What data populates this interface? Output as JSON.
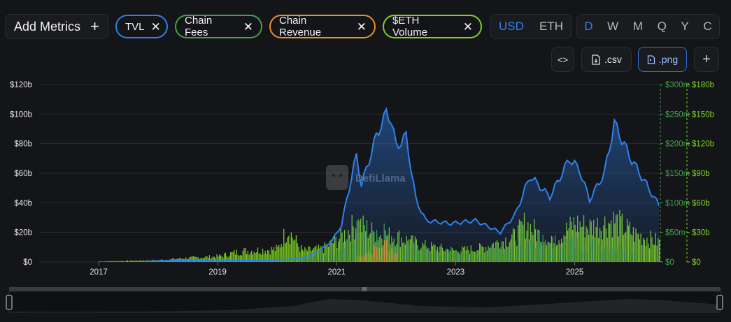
{
  "toolbar": {
    "add_metrics_label": "Add Metrics",
    "add_metrics_icon": "plus-icon",
    "metrics": [
      {
        "label": "TVL",
        "color": "#2f80ed"
      },
      {
        "label": "Chain Fees",
        "color": "#3fa34d"
      },
      {
        "label": "Chain Revenue",
        "color": "#e8912d"
      },
      {
        "label": "$ETH Volume",
        "color": "#7ed321"
      }
    ],
    "currency": [
      "USD",
      "ETH"
    ],
    "currency_selected": "USD",
    "intervals": [
      "D",
      "W",
      "M",
      "Q",
      "Y",
      "C"
    ],
    "interval_selected": "D",
    "embed_icon": "code-icon",
    "csv_label": ".csv",
    "png_label": ".png",
    "more_icon": "plus-icon"
  },
  "watermark": "DefiLlama",
  "chart_data": {
    "type": "area",
    "x_ticks": [
      "2017",
      "2019",
      "2021",
      "2023",
      "2025"
    ],
    "x_range": [
      "2016-01",
      "2026-06"
    ],
    "axes": {
      "left": {
        "ticks": [
          "$0",
          "$20b",
          "$40b",
          "$60b",
          "$80b",
          "$100b",
          "$120b"
        ],
        "ylim": [
          0,
          120
        ],
        "unit": "billion USD"
      },
      "right_fees": {
        "ticks": [
          "$0",
          "$50m",
          "$100m",
          "$150m",
          "$200m",
          "$250m",
          "$300m"
        ],
        "ylim": [
          0,
          300
        ],
        "unit": "million USD",
        "color": "#3fa34d"
      },
      "right_volume": {
        "ticks": [
          "$0",
          "$30b",
          "$60b",
          "$90b",
          "$120b",
          "$150b",
          "$180b"
        ],
        "ylim": [
          0,
          180
        ],
        "unit": "billion USD",
        "color": "#7ed321"
      }
    },
    "grid": true,
    "series": [
      {
        "name": "TVL",
        "type": "area",
        "axis": "left",
        "color": "#2f80ed",
        "x": [
          "2017-11",
          "2018-06",
          "2019-01",
          "2019-06",
          "2020-01",
          "2020-06",
          "2020-09",
          "2020-12",
          "2021-02",
          "2021-03",
          "2021-05",
          "2021-06",
          "2021-09",
          "2021-11",
          "2021-12",
          "2022-01",
          "2022-03",
          "2022-05",
          "2022-07",
          "2022-12",
          "2023-05",
          "2023-10",
          "2024-01",
          "2024-04",
          "2024-08",
          "2024-12",
          "2025-02",
          "2025-04",
          "2025-07",
          "2025-09",
          "2025-12",
          "2026-03",
          "2026-06"
        ],
        "values": [
          0.5,
          1.0,
          0.8,
          0.9,
          1.2,
          2.5,
          6.5,
          14,
          25,
          42,
          72,
          52,
          85,
          101,
          96,
          78,
          85,
          42,
          28,
          26,
          28,
          20,
          32,
          58,
          44,
          70,
          62,
          42,
          60,
          94,
          72,
          55,
          38
        ]
      },
      {
        "name": "Chain Fees",
        "type": "bar",
        "axis": "right_fees",
        "color": "#3fa34d",
        "x": [
          "2020-06",
          "2020-12",
          "2021-05",
          "2021-11",
          "2022-05",
          "2023-06",
          "2024-03",
          "2025-01",
          "2026-01"
        ],
        "values": [
          8,
          15,
          55,
          50,
          25,
          15,
          40,
          35,
          25
        ]
      },
      {
        "name": "Chain Revenue",
        "type": "bar",
        "axis": "right_fees",
        "color": "#e8912d",
        "x": [
          "2021-05",
          "2021-09",
          "2021-11",
          "2022-01"
        ],
        "values": [
          10,
          25,
          35,
          15
        ]
      },
      {
        "name": "$ETH Volume",
        "type": "bar",
        "axis": "right_volume",
        "color": "#7ed321",
        "x": [
          "2017-01",
          "2018-01",
          "2018-06",
          "2019-01",
          "2019-06",
          "2020-01",
          "2020-03",
          "2020-06",
          "2020-10",
          "2021-01",
          "2021-05",
          "2021-09",
          "2022-01",
          "2022-06",
          "2023-01",
          "2023-06",
          "2024-01",
          "2024-03",
          "2024-08",
          "2025-01",
          "2025-04",
          "2025-09",
          "2026-01",
          "2026-06"
        ],
        "values": [
          0.5,
          2,
          4,
          6,
          12,
          14,
          36,
          12,
          14,
          24,
          42,
          30,
          28,
          18,
          12,
          15,
          28,
          42,
          20,
          42,
          38,
          45,
          30,
          22
        ]
      }
    ]
  }
}
